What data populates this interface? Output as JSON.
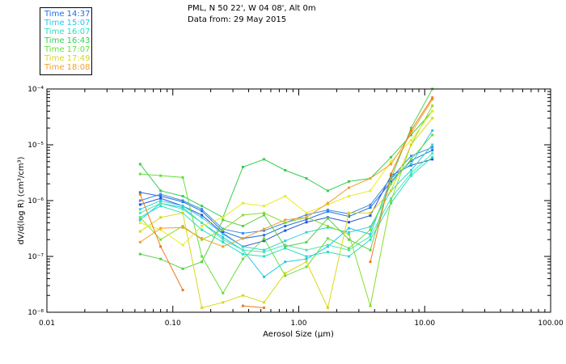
{
  "header": {
    "site": "PML, N 50 22', W 04 08', Alt 0m",
    "date": "Data from: 29 May 2015"
  },
  "chart_data": {
    "type": "line",
    "title": "PML, N 50 22', W 04 08', Alt 0m",
    "subtitle": "Data from: 29 May 2015",
    "xlabel": "Aerosol Size (µm)",
    "ylabel": "dV/d(log R) (cm³/cm³)",
    "xscale": "log",
    "yscale": "log",
    "xlim": [
      0.01,
      100
    ],
    "ylim": [
      1e-08,
      0.0001
    ],
    "x_tick_labels": [
      "0.01",
      "0.10",
      "1.00",
      "10.00",
      "100.00"
    ],
    "y_tick_labels": [
      "10⁻⁸",
      "10⁻⁷",
      "10⁻⁶",
      "10⁻⁵",
      "10⁻⁴"
    ],
    "x": [
      0.055,
      0.08,
      0.12,
      0.17,
      0.25,
      0.36,
      0.53,
      0.78,
      1.15,
      1.7,
      2.5,
      3.7,
      5.4,
      7.8,
      11.5
    ],
    "legend_title_hidden": "",
    "series": [
      {
        "name": "Time 14:37",
        "color": "#1f6fe0",
        "values": [
          1.4e-06,
          1.2e-06,
          9.5e-07,
          6.5e-07,
          2.8e-07,
          2.1e-07,
          2.4e-07,
          3.5e-07,
          4.6e-07,
          6.4e-07,
          5.2e-07,
          7.5e-07,
          2.2e-06,
          5.2e-06,
          8e-06
        ]
      },
      {
        "name": "Time 14:37",
        "color": "#2a52d0",
        "values": [
          8.5e-07,
          1.1e-06,
          8e-07,
          5.5e-07,
          2.6e-07,
          1.5e-07,
          1.9e-07,
          2.9e-07,
          4.1e-07,
          5e-07,
          4.1e-07,
          5.4e-07,
          2.8e-06,
          4.3e-06,
          5.5e-06
        ]
      },
      {
        "name": "Time 14:37",
        "color": "#3a8ae8",
        "values": [
          1e-06,
          1.3e-06,
          1e-06,
          7e-07,
          3.1e-07,
          2.6e-07,
          2.9e-07,
          4e-07,
          5.6e-07,
          6.8e-07,
          5.8e-07,
          8.4e-07,
          2.5e-06,
          6.3e-06,
          9e-06
        ]
      },
      {
        "name": "Time 15:07",
        "color": "#27c7ea",
        "values": [
          4.5e-07,
          9e-07,
          7.5e-07,
          4e-07,
          2.2e-07,
          1.3e-07,
          4.3e-08,
          8e-08,
          9e-08,
          1.5e-07,
          3.2e-07,
          2.5e-07,
          2.5e-06,
          4.5e-06,
          1.8e-05
        ]
      },
      {
        "name": "Time 15:07",
        "color": "#33d3d8",
        "values": [
          7e-07,
          1e-06,
          8e-07,
          5e-07,
          2.5e-07,
          1.5e-07,
          1.3e-07,
          1.9e-07,
          2.7e-07,
          3.3e-07,
          2.7e-07,
          3.4e-07,
          1.5e-06,
          3.5e-06,
          1e-05
        ]
      },
      {
        "name": "Time 16:07",
        "color": "#28e0c0",
        "values": [
          5e-07,
          8e-07,
          6e-07,
          3e-07,
          1.8e-07,
          1.1e-07,
          1e-07,
          1.4e-07,
          1e-07,
          1.2e-07,
          1e-07,
          2e-07,
          9e-07,
          2.8e-06,
          6e-06
        ]
      },
      {
        "name": "Time 16:07",
        "color": "#48e8b0",
        "values": [
          6e-07,
          9e-07,
          7e-07,
          4e-07,
          2e-07,
          1.3e-07,
          1.2e-07,
          1.6e-07,
          1.3e-07,
          1.6e-07,
          1.3e-07,
          2.3e-07,
          1.1e-06,
          3.1e-06,
          7e-06
        ]
      },
      {
        "name": "Time 16:43",
        "color": "#35cf52",
        "values": [
          4.5e-06,
          1.5e-06,
          1.2e-06,
          8e-07,
          5e-07,
          4e-06,
          5.5e-06,
          3.5e-06,
          2.5e-06,
          1.5e-06,
          2.2e-06,
          2.5e-06,
          6e-06,
          1.5e-05,
          4e-05
        ]
      },
      {
        "name": "Time 16:43",
        "color": "#5ad04a",
        "values": [
          1.1e-07,
          9e-08,
          6e-08,
          8e-08,
          4.5e-07,
          3.5e-07,
          5.5e-07,
          1.5e-07,
          1.8e-07,
          4.8e-07,
          2e-07,
          1.3e-07,
          2.5e-06,
          2e-05,
          0.0001
        ]
      },
      {
        "name": "Time 17:07",
        "color": "#66e03e",
        "values": [
          3e-06,
          2.8e-06,
          2.6e-06,
          1e-07,
          2.2e-08,
          9e-08,
          2.1e-07,
          4.5e-08,
          6.5e-08,
          2.1e-07,
          1.4e-07,
          3e-07,
          2e-06,
          5.5e-06,
          1.5e-05
        ]
      },
      {
        "name": "Time 17:07",
        "color": "#8adc2e",
        "values": [
          5e-07,
          2e-07,
          3.5e-07,
          2e-07,
          3e-07,
          5.5e-07,
          6e-07,
          4e-07,
          5e-07,
          3.5e-07,
          2.5e-07,
          1.3e-08,
          1e-06,
          1e-05,
          5e-05
        ]
      },
      {
        "name": "Time 17:49",
        "color": "#d8d81a",
        "values": [
          2.8e-07,
          5e-07,
          6e-07,
          1.2e-08,
          1.5e-08,
          2e-08,
          1.5e-08,
          5e-08,
          8e-08,
          1.2e-08,
          6e-07,
          6e-07,
          1.5e-06,
          1e-05,
          3e-05
        ]
      },
      {
        "name": "Time 17:49",
        "color": "#ecec20",
        "values": [
          4e-07,
          3e-07,
          1.6e-07,
          3.5e-07,
          5e-07,
          9e-07,
          8e-07,
          1.2e-06,
          6e-07,
          8.5e-07,
          1.2e-06,
          1.5e-06,
          5e-06,
          1.2e-05,
          4e-05
        ]
      },
      {
        "name": "Time 18:08",
        "color": "#f0a030",
        "values": [
          1.8e-07,
          3.2e-07,
          3.3e-07,
          2.1e-07,
          1.5e-07,
          2.1e-07,
          3.1e-07,
          4.5e-07,
          5e-07,
          9e-07,
          1.7e-06,
          2.5e-06,
          4.5e-06,
          1.6e-05,
          6.5e-05
        ]
      },
      {
        "name": "Time 18:08",
        "color": "#ee7a1c",
        "values": [
          1.3e-06,
          1.5e-07,
          2.5e-08,
          null,
          null,
          1.3e-08,
          1.2e-08,
          null,
          null,
          null,
          null,
          8e-08,
          3e-06,
          1.8e-05,
          7e-05
        ]
      }
    ],
    "legend": [
      {
        "label": "Time 14:37",
        "color": "#1f6fe0"
      },
      {
        "label": "Time 15:07",
        "color": "#27c7ea"
      },
      {
        "label": "Time 16:07",
        "color": "#28e0c0"
      },
      {
        "label": "Time 16:43",
        "color": "#35cf52"
      },
      {
        "label": "Time 17:07",
        "color": "#66e03e"
      },
      {
        "label": "Time 17:49",
        "color": "#d8d81a"
      },
      {
        "label": "Time 18:08",
        "color": "#f0a030"
      }
    ]
  }
}
